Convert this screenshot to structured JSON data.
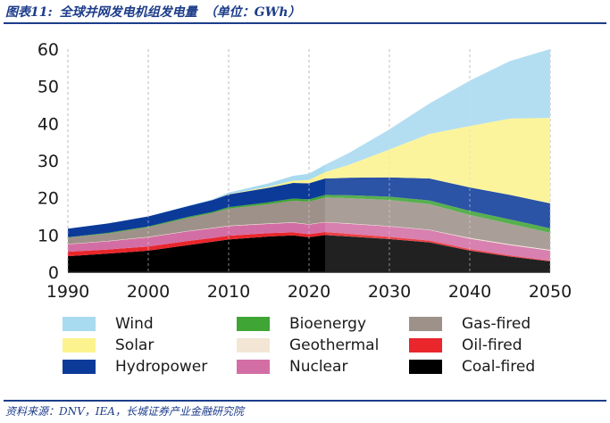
{
  "figure": {
    "number_label": "图表11:",
    "title": "全球并网发电机组发电量",
    "unit": "（单位：GWh）",
    "source": "资料来源：DNV，IEA，长城证券产业金融研究院"
  },
  "chart_data": {
    "type": "area",
    "stacked": true,
    "title": "全球并网发电机组发电量（单位：GWh）",
    "xlabel": "",
    "ylabel": "",
    "xlim": [
      1990,
      2050
    ],
    "ylim": [
      0,
      60
    ],
    "x_ticks": [
      1990,
      2000,
      2010,
      2020,
      2030,
      2040,
      2050
    ],
    "y_ticks": [
      0,
      10,
      20,
      30,
      40,
      50,
      60
    ],
    "grid": "vertical dashed",
    "forecast_start": 2022,
    "legend_position": "bottom",
    "x": [
      1990,
      1995,
      2000,
      2005,
      2008,
      2010,
      2015,
      2018,
      2020,
      2022,
      2025,
      2030,
      2035,
      2040,
      2045,
      2050
    ],
    "series": [
      {
        "name": "Coal-fired",
        "color": "#000000",
        "values": [
          4.3,
          5.0,
          5.8,
          7.3,
          8.2,
          8.8,
          9.6,
          9.9,
          9.4,
          10.0,
          9.6,
          8.9,
          8.0,
          5.8,
          4.2,
          2.9
        ]
      },
      {
        "name": "Oil-fired",
        "color": "#e8262b",
        "values": [
          1.2,
          1.1,
          1.1,
          1.1,
          1.0,
          1.0,
          0.9,
          0.8,
          0.8,
          0.8,
          0.7,
          0.6,
          0.5,
          0.4,
          0.3,
          0.2
        ]
      },
      {
        "name": "Nuclear",
        "color": "#d36ea5",
        "values": [
          2.0,
          2.2,
          2.5,
          2.6,
          2.6,
          2.6,
          2.5,
          2.6,
          2.6,
          2.6,
          2.7,
          2.8,
          2.8,
          2.8,
          2.8,
          2.7
        ]
      },
      {
        "name": "Geothermal",
        "color": "#f3e6d4",
        "values": [
          0.1,
          0.1,
          0.1,
          0.1,
          0.1,
          0.1,
          0.1,
          0.1,
          0.1,
          0.1,
          0.1,
          0.1,
          0.1,
          0.2,
          0.2,
          0.2
        ]
      },
      {
        "name": "Gas-fired",
        "color": "#9e9189",
        "values": [
          1.7,
          2.0,
          2.6,
          3.5,
          4.0,
          4.6,
          5.2,
          5.8,
          6.1,
          6.6,
          6.8,
          7.0,
          6.9,
          6.2,
          5.5,
          4.6
        ]
      },
      {
        "name": "Bioenergy",
        "color": "#3fa535",
        "values": [
          0.1,
          0.2,
          0.2,
          0.3,
          0.3,
          0.4,
          0.5,
          0.6,
          0.6,
          0.7,
          0.8,
          0.9,
          1.0,
          1.1,
          1.2,
          1.2
        ]
      },
      {
        "name": "Hydropower",
        "color": "#0c3a99",
        "values": [
          2.3,
          2.5,
          2.7,
          2.9,
          3.2,
          3.4,
          3.9,
          4.2,
          4.3,
          4.4,
          4.7,
          5.2,
          5.9,
          6.3,
          6.6,
          6.7
        ]
      },
      {
        "name": "Solar",
        "color": "#fcf38e",
        "values": [
          0.0,
          0.0,
          0.0,
          0.0,
          0.0,
          0.1,
          0.3,
          0.6,
          0.9,
          1.7,
          3.5,
          7.5,
          12.0,
          16.5,
          20.5,
          23.0
        ]
      },
      {
        "name": "Wind",
        "color": "#a8daf0",
        "values": [
          0.0,
          0.0,
          0.0,
          0.1,
          0.2,
          0.4,
          0.9,
          1.3,
          1.7,
          2.0,
          3.2,
          5.4,
          8.2,
          12.2,
          15.5,
          18.5
        ]
      }
    ],
    "legend_order": [
      "Wind",
      "Solar",
      "Hydropower",
      "Bioenergy",
      "Geothermal",
      "Nuclear",
      "Gas-fired",
      "Oil-fired",
      "Coal-fired"
    ]
  }
}
